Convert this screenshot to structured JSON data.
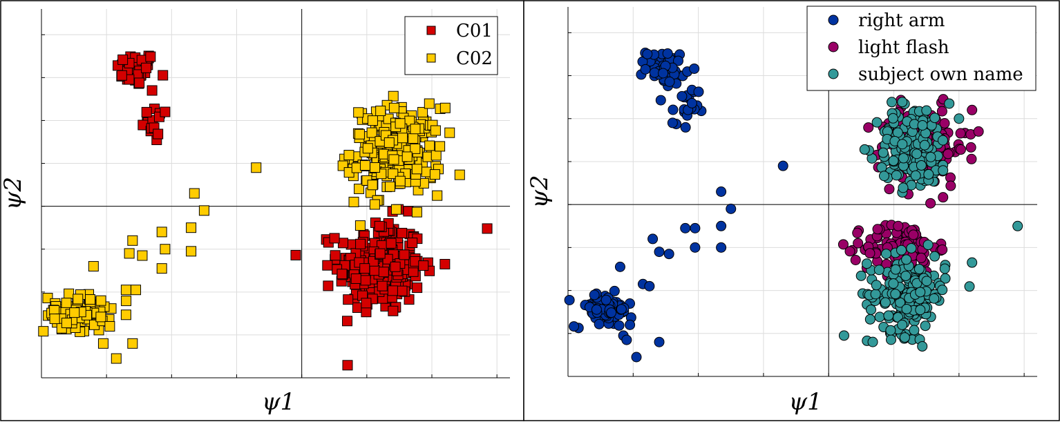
{
  "chart_data": [
    {
      "type": "scatter",
      "xlabel": "ψ1",
      "ylabel": "ψ2",
      "xlim": [
        -4,
        3.2
      ],
      "ylim": [
        -4,
        4.6
      ],
      "grid": true,
      "legend_position": "top-right",
      "marker": "square",
      "series": [
        {
          "name": "C01",
          "color": "#d40000",
          "clusters": [
            {
              "center": [
                -2.55,
                3.2
              ],
              "spread": [
                0.15,
                0.2
              ],
              "count": 45
            },
            {
              "center": [
                -2.25,
                1.9
              ],
              "spread": [
                0.1,
                0.22
              ],
              "count": 15
            },
            {
              "center": [
                1.2,
                -1.4
              ],
              "spread": [
                0.32,
                0.55
              ],
              "count": 240
            }
          ],
          "points": [
            [
              2.85,
              -0.52
            ],
            [
              2.2,
              -1.35
            ],
            [
              -2.3,
              2.7
            ],
            [
              -2.1,
              2.2
            ]
          ]
        },
        {
          "name": "C02",
          "color": "#ffcc00",
          "clusters": [
            {
              "center": [
                1.45,
                1.3
              ],
              "spread": [
                0.35,
                0.5
              ],
              "count": 230
            },
            {
              "center": [
                -3.45,
                -2.5
              ],
              "spread": [
                0.25,
                0.22
              ],
              "count": 80
            }
          ],
          "points": [
            [
              -0.7,
              0.9
            ],
            [
              -1.65,
              0.3
            ],
            [
              -1.5,
              -0.1
            ],
            [
              -1.7,
              -0.5
            ],
            [
              -1.7,
              -1.05
            ],
            [
              -2.1,
              -1.0
            ],
            [
              -2.15,
              -0.6
            ],
            [
              -2.6,
              -0.8
            ],
            [
              -2.65,
              -1.1
            ],
            [
              -2.45,
              -1.15
            ],
            [
              -3.2,
              -1.4
            ],
            [
              -2.7,
              -1.95
            ],
            [
              -2.55,
              -1.95
            ],
            [
              -2.95,
              -2.8
            ],
            [
              -2.6,
              -3.2
            ],
            [
              -3.05,
              -3.2
            ],
            [
              -2.85,
              -3.55
            ],
            [
              -2.15,
              -1.45
            ],
            [
              0.8,
              0.1
            ],
            [
              0.9,
              -0.45
            ]
          ]
        }
      ]
    },
    {
      "type": "scatter",
      "xlabel": "ψ1",
      "ylabel": "ψ2",
      "xlim": [
        -4,
        3.2
      ],
      "ylim": [
        -4,
        4.6
      ],
      "grid": true,
      "legend_position": "top-right",
      "marker": "circle",
      "series": [
        {
          "name": "right arm",
          "color": "#0033a0",
          "clusters": [
            {
              "center": [
                -2.5,
                3.2
              ],
              "spread": [
                0.15,
                0.2
              ],
              "count": 50
            },
            {
              "center": [
                -2.2,
                2.15
              ],
              "spread": [
                0.1,
                0.3
              ],
              "count": 20
            },
            {
              "center": [
                -3.45,
                -2.45
              ],
              "spread": [
                0.22,
                0.2
              ],
              "count": 80
            }
          ],
          "points": [
            [
              -0.7,
              0.9
            ],
            [
              -1.65,
              0.3
            ],
            [
              -1.5,
              -0.1
            ],
            [
              -1.65,
              -0.5
            ],
            [
              -1.65,
              -1.0
            ],
            [
              -2.05,
              -1.0
            ],
            [
              -2.05,
              -0.55
            ],
            [
              -2.2,
              -0.55
            ],
            [
              -2.7,
              -0.8
            ],
            [
              -2.6,
              -1.1
            ],
            [
              -2.45,
              -1.15
            ],
            [
              -3.2,
              -1.45
            ],
            [
              -2.85,
              -1.85
            ],
            [
              -2.75,
              -1.9
            ],
            [
              -3.05,
              -2.8
            ],
            [
              -2.95,
              -3.55
            ],
            [
              -2.6,
              -3.2
            ],
            [
              -3.1,
              -3.15
            ]
          ]
        },
        {
          "name": "light flash",
          "color": "#990066",
          "clusters": [
            {
              "center": [
                1.45,
                1.35
              ],
              "spread": [
                0.33,
                0.45
              ],
              "count": 130
            },
            {
              "center": [
                1.1,
                -1.0
              ],
              "spread": [
                0.28,
                0.3
              ],
              "count": 110
            }
          ],
          "points": [
            [
              0.45,
              -0.9
            ],
            [
              2.2,
              2.2
            ],
            [
              2.3,
              1.7
            ]
          ]
        },
        {
          "name": "subject own name",
          "color": "#339999",
          "clusters": [
            {
              "center": [
                1.3,
                1.35
              ],
              "spread": [
                0.28,
                0.5
              ],
              "count": 160
            },
            {
              "center": [
                1.2,
                -2.1
              ],
              "spread": [
                0.3,
                0.45
              ],
              "count": 180
            }
          ],
          "points": [
            [
              2.9,
              -0.5
            ],
            [
              2.2,
              -1.35
            ],
            [
              2.0,
              2.0
            ],
            [
              1.85,
              2.35
            ]
          ]
        }
      ]
    }
  ]
}
